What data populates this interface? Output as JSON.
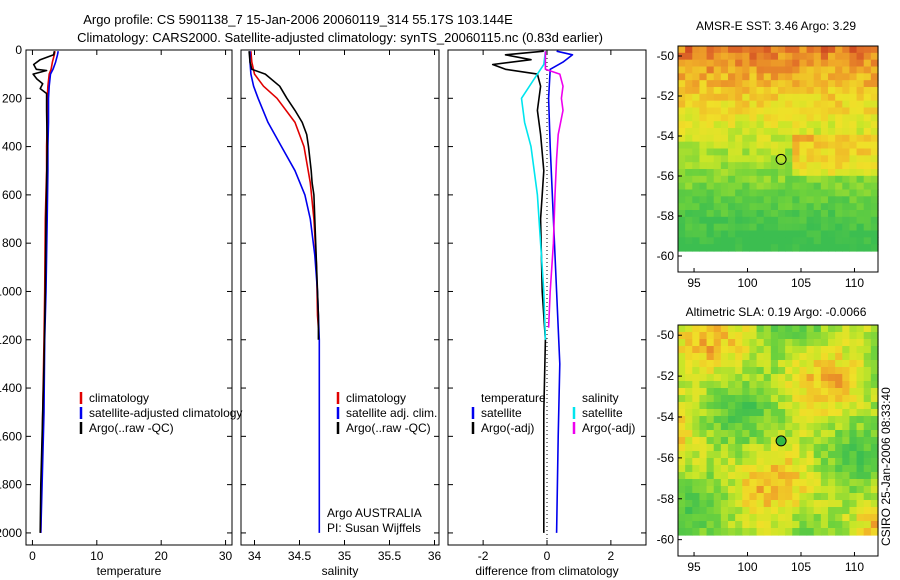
{
  "header": {
    "line1": "Argo profile: CS 5901138_7 15-Jan-2006 20060119_314 55.17S 103.144E",
    "line2": "Climatology: CARS2000. Satellite-adjusted climatology: synTS_20060115.nc (0.83d earlier)"
  },
  "colors": {
    "climatology": "#e00000",
    "satellite": "#0000ee",
    "argo": "#000000",
    "salinity_satellite": "#00e5ee",
    "salinity_argo": "#ee00ee"
  },
  "chart_data": [
    {
      "id": "temperature",
      "type": "line",
      "xlabel": "temperature",
      "ylabel": "",
      "xlim": [
        -1,
        31
      ],
      "ylim": [
        2050,
        0
      ],
      "xticks": [
        0,
        10,
        20,
        30
      ],
      "yticks": [
        0,
        200,
        400,
        600,
        800,
        1000,
        1200,
        1400,
        1600,
        1800,
        2000
      ],
      "legend": [
        "climatology",
        "satellite-adjusted climatology",
        "Argo(..raw -QC)"
      ],
      "series": [
        {
          "name": "climatology",
          "color": "#e00000",
          "width": 1.6,
          "points": [
            [
              3.5,
              5
            ],
            [
              3.4,
              20
            ],
            [
              3.1,
              50
            ],
            [
              2.9,
              80
            ],
            [
              2.6,
              100
            ],
            [
              2.4,
              150
            ],
            [
              2.3,
              200
            ],
            [
              2.3,
              300
            ],
            [
              2.2,
              400
            ],
            [
              2.2,
              500
            ],
            [
              2.0,
              700
            ],
            [
              1.9,
              1000
            ],
            [
              1.8,
              1200
            ],
            [
              1.6,
              1500
            ],
            [
              1.4,
              1800
            ],
            [
              1.3,
              2000
            ]
          ]
        },
        {
          "name": "satellite-adjusted climatology",
          "color": "#0000ee",
          "width": 1.6,
          "points": [
            [
              4.0,
              5
            ],
            [
              3.9,
              20
            ],
            [
              3.6,
              50
            ],
            [
              3.2,
              80
            ],
            [
              2.8,
              100
            ],
            [
              2.6,
              150
            ],
            [
              2.5,
              200
            ],
            [
              2.5,
              300
            ],
            [
              2.4,
              400
            ],
            [
              2.4,
              500
            ],
            [
              2.3,
              700
            ],
            [
              2.1,
              1000
            ],
            [
              1.9,
              1200
            ],
            [
              1.8,
              1500
            ],
            [
              1.5,
              1800
            ],
            [
              1.3,
              2000
            ]
          ]
        },
        {
          "name": "Argo(..raw -QC)",
          "color": "#000000",
          "width": 1.6,
          "points": [
            [
              3.4,
              5
            ],
            [
              3.3,
              20
            ],
            [
              1.2,
              40
            ],
            [
              0.2,
              60
            ],
            [
              0.6,
              80
            ],
            [
              2.2,
              85
            ],
            [
              0.1,
              100
            ],
            [
              0.7,
              120
            ],
            [
              1.6,
              140
            ],
            [
              1.2,
              160
            ],
            [
              2.2,
              180
            ],
            [
              2.2,
              250
            ],
            [
              2.3,
              400
            ],
            [
              2.1,
              700
            ],
            [
              2.0,
              1000
            ],
            [
              1.8,
              1300
            ],
            [
              1.5,
              1600
            ],
            [
              1.3,
              1800
            ],
            [
              1.2,
              2000
            ]
          ]
        }
      ]
    },
    {
      "id": "salinity",
      "type": "line",
      "xlabel": "salinity",
      "ylabel": "",
      "xlim": [
        33.85,
        36.05
      ],
      "ylim": [
        2050,
        0
      ],
      "xticks": [
        34,
        34.5,
        35,
        35.5,
        36
      ],
      "yticks": [],
      "legend": [
        "climatology",
        "satellite adj. clim.",
        "Argo(..raw -QC)"
      ],
      "annotation": [
        "Argo AUSTRALIA",
        "PI: Susan Wijffels"
      ],
      "series": [
        {
          "name": "climatology",
          "color": "#e00000",
          "width": 1.6,
          "points": [
            [
              33.96,
              5
            ],
            [
              33.97,
              50
            ],
            [
              34.0,
              100
            ],
            [
              34.1,
              150
            ],
            [
              34.25,
              200
            ],
            [
              34.45,
              300
            ],
            [
              34.55,
              400
            ],
            [
              34.62,
              550
            ],
            [
              34.66,
              700
            ],
            [
              34.69,
              900
            ],
            [
              34.7,
              1100
            ],
            [
              34.71,
              1150
            ]
          ]
        },
        {
          "name": "satellite adj. clim.",
          "color": "#0000ee",
          "width": 1.6,
          "points": [
            [
              33.95,
              5
            ],
            [
              33.95,
              50
            ],
            [
              33.96,
              100
            ],
            [
              33.99,
              150
            ],
            [
              34.04,
              200
            ],
            [
              34.15,
              300
            ],
            [
              34.3,
              400
            ],
            [
              34.45,
              500
            ],
            [
              34.56,
              600
            ],
            [
              34.62,
              700
            ],
            [
              34.67,
              850
            ],
            [
              34.7,
              1000
            ],
            [
              34.72,
              1200
            ],
            [
              34.72,
              1500
            ],
            [
              34.72,
              1800
            ],
            [
              34.72,
              2000
            ]
          ]
        },
        {
          "name": "Argo(..raw -QC)",
          "color": "#000000",
          "width": 1.6,
          "points": [
            [
              33.94,
              5
            ],
            [
              33.95,
              50
            ],
            [
              33.97,
              80
            ],
            [
              34.12,
              100
            ],
            [
              34.28,
              150
            ],
            [
              34.36,
              200
            ],
            [
              34.45,
              250
            ],
            [
              34.53,
              300
            ],
            [
              34.58,
              350
            ],
            [
              34.6,
              400
            ],
            [
              34.63,
              500
            ],
            [
              34.64,
              550
            ],
            [
              34.66,
              600
            ],
            [
              34.67,
              700
            ],
            [
              34.68,
              800
            ],
            [
              34.69,
              900
            ],
            [
              34.7,
              1000
            ],
            [
              34.71,
              1100
            ],
            [
              34.71,
              1150
            ],
            [
              34.71,
              1200
            ]
          ]
        }
      ]
    },
    {
      "id": "difference",
      "type": "line",
      "xlabel": "difference from climatology",
      "ylabel": "",
      "xlim": [
        -3.1,
        3.1
      ],
      "ylim": [
        2050,
        0
      ],
      "xticks": [
        -2,
        0,
        2
      ],
      "yticks": [],
      "legend_titles": [
        "temperature",
        "salinity"
      ],
      "legend": [
        "satellite",
        "Argo(-adj)",
        "satellite",
        "Argo(-adj)"
      ],
      "series": [
        {
          "name": "temperature satellite",
          "color": "#0000ee",
          "width": 1.6,
          "points": [
            [
              0.3,
              5
            ],
            [
              0.8,
              20
            ],
            [
              0.5,
              50
            ],
            [
              0.1,
              80
            ],
            [
              0.05,
              200
            ],
            [
              0.1,
              400
            ],
            [
              0.2,
              700
            ],
            [
              0.3,
              1000
            ],
            [
              0.4,
              1300
            ],
            [
              0.35,
              1600
            ],
            [
              0.3,
              2000
            ]
          ]
        },
        {
          "name": "temperature Argo(-adj)",
          "color": "#000000",
          "width": 1.6,
          "points": [
            [
              -0.1,
              5
            ],
            [
              -1.3,
              20
            ],
            [
              -0.5,
              40
            ],
            [
              -1.7,
              60
            ],
            [
              -1.3,
              80
            ],
            [
              -0.3,
              100
            ],
            [
              -0.2,
              150
            ],
            [
              -0.3,
              250
            ],
            [
              -0.2,
              350
            ],
            [
              -0.1,
              500
            ],
            [
              -0.2,
              700
            ],
            [
              -0.15,
              1000
            ],
            [
              -0.05,
              1200
            ],
            [
              -0.1,
              1500
            ],
            [
              -0.1,
              2000
            ]
          ]
        },
        {
          "name": "salinity satellite",
          "color": "#00e5ee",
          "width": 1.6,
          "points": [
            [
              -0.05,
              5
            ],
            [
              -0.1,
              60
            ],
            [
              -0.3,
              100
            ],
            [
              -0.8,
              200
            ],
            [
              -0.7,
              300
            ],
            [
              -0.5,
              400
            ],
            [
              -0.3,
              600
            ],
            [
              -0.2,
              800
            ],
            [
              -0.1,
              1000
            ],
            [
              -0.05,
              1200
            ]
          ]
        },
        {
          "name": "salinity Argo(-adj)",
          "color": "#ee00ee",
          "width": 1.6,
          "points": [
            [
              -0.05,
              5
            ],
            [
              -0.05,
              80
            ],
            [
              0.4,
              100
            ],
            [
              0.5,
              150
            ],
            [
              0.45,
              200
            ],
            [
              0.5,
              250
            ],
            [
              0.35,
              350
            ],
            [
              0.3,
              450
            ],
            [
              0.25,
              600
            ],
            [
              0.2,
              800
            ],
            [
              0.1,
              1000
            ],
            [
              0.05,
              1150
            ]
          ]
        }
      ]
    }
  ],
  "maps": [
    {
      "id": "sst",
      "title": "AMSR-E SST: 3.46 Argo: 3.29",
      "xticks": [
        95,
        100,
        105,
        110
      ],
      "yticks": [
        -50,
        -52,
        -54,
        -56,
        -58,
        -60
      ],
      "xlim": [
        93.5,
        112.2
      ],
      "ylim": [
        -60.8,
        -49.5
      ],
      "marker": {
        "lon": 103.144,
        "lat": -55.17
      }
    },
    {
      "id": "sla",
      "title": "Altimetric SLA: 0.19 Argo: -0.0066",
      "xticks": [
        95,
        100,
        105,
        110
      ],
      "yticks": [
        -50,
        -52,
        -54,
        -56,
        -58,
        -60
      ],
      "xlim": [
        93.5,
        112.2
      ],
      "ylim": [
        -60.8,
        -49.5
      ],
      "marker": {
        "lon": 103.144,
        "lat": -55.17
      }
    }
  ],
  "footer": {
    "credit": "CSIRO 25-Jan-2006 08:33:40"
  }
}
